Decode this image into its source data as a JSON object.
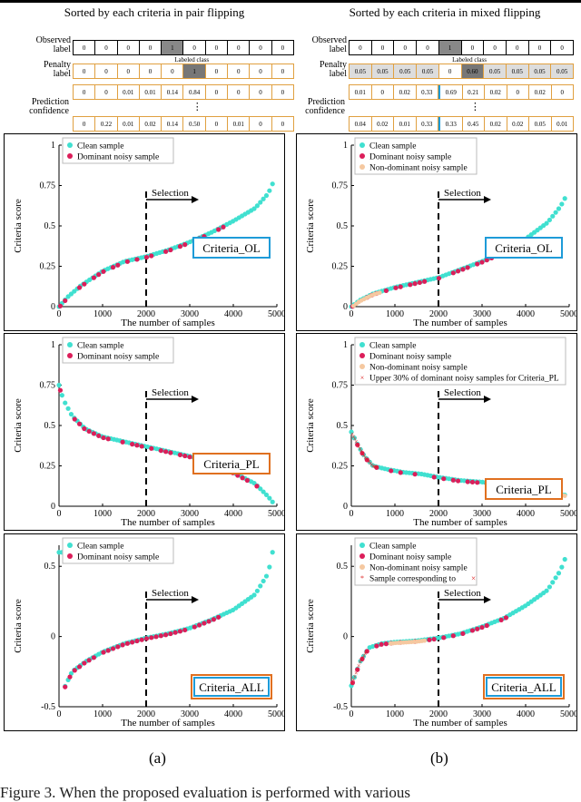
{
  "header_strips": [
    {
      "title": "Sorted by each criteria in pair flipping",
      "observed_label": "Observed label",
      "penalty_label": "Penalty label",
      "prediction_confidence": "Prediction confidence",
      "labeled_class": "Labeled class",
      "observed": [
        "0",
        "0",
        "0",
        "0",
        "1",
        "0",
        "0",
        "0",
        "0",
        "0"
      ],
      "penalty": [
        "0",
        "0",
        "0",
        "0",
        "0",
        "1",
        "0",
        "0",
        "0",
        "0"
      ],
      "conf1": [
        "0",
        "0",
        "0.01",
        "0.01",
        "0.14",
        "0.84",
        "0",
        "0",
        "0",
        "0"
      ],
      "conf2": [
        "0",
        "0.22",
        "0.01",
        "0.02",
        "0.14",
        "0.50",
        "0",
        "0.01",
        "0",
        "0"
      ],
      "highlight_observed": 4,
      "highlight_penalty": 5
    },
    {
      "title": "Sorted by each criteria in mixed flipping",
      "observed_label": "Observed label",
      "penalty_label": "Penalty label",
      "prediction_confidence": "Prediction confidence",
      "labeled_class": "Labeled class",
      "observed": [
        "0",
        "0",
        "0",
        "0",
        "1",
        "0",
        "0",
        "0",
        "0",
        "0"
      ],
      "penalty": [
        "0.05",
        "0.05",
        "0.05",
        "0.05",
        "0",
        "0.60",
        "0.05",
        "0.05",
        "0.05",
        "0.05"
      ],
      "conf1": [
        "0.01",
        "0",
        "0.02",
        "0.33",
        "0.69",
        "0.21",
        "0.02",
        "0",
        "0.02",
        "0"
      ],
      "conf2": [
        "0.04",
        "0.02",
        "0.01",
        "0.33",
        "0.33",
        "0.45",
        "0.02",
        "0.02",
        "0.05",
        "0.01"
      ],
      "highlight_observed": 4,
      "highlight_penalty": 5
    }
  ],
  "colors": {
    "clean": "#40e0d0",
    "dominant": "#dc1e5a",
    "nondominant": "#f5c8a0",
    "upper": "#dc1e1e",
    "box_blue": "#1e9bd8",
    "box_orange": "#e07020",
    "orange_border": "#e0a040"
  },
  "chart_data": [
    {
      "id": "a1",
      "type": "scatter",
      "criteria": "Criteria_OL",
      "box": "blue",
      "xlabel": "The number of samples",
      "ylabel": "Criteria score",
      "ylim": [
        0,
        1
      ],
      "yticks": [
        "0",
        "0.25",
        "0.5",
        "0.75",
        "1"
      ],
      "xticks": [
        "0",
        "1000",
        "2000",
        "3000",
        "4000",
        "5000"
      ],
      "selection": "Selection",
      "legend": [
        "Clean sample",
        "Dominant noisy sample"
      ],
      "curve": [
        [
          0,
          0
        ],
        [
          200,
          0.06
        ],
        [
          500,
          0.13
        ],
        [
          1000,
          0.22
        ],
        [
          1500,
          0.28
        ],
        [
          2000,
          0.31
        ],
        [
          2500,
          0.35
        ],
        [
          3000,
          0.4
        ],
        [
          3500,
          0.46
        ],
        [
          4000,
          0.53
        ],
        [
          4500,
          0.61
        ],
        [
          4800,
          0.7
        ],
        [
          4950,
          0.79
        ]
      ],
      "noisy_upto": 3900
    },
    {
      "id": "b1",
      "type": "scatter",
      "criteria": "Criteria_OL",
      "box": "blue",
      "xlabel": "The number of samples",
      "ylabel": "Criteria score",
      "ylim": [
        0,
        1
      ],
      "yticks": [
        "0",
        "0.25",
        "0.5",
        "0.75",
        "1"
      ],
      "xticks": [
        "0",
        "1000",
        "2000",
        "3000",
        "4000",
        "5000"
      ],
      "selection": "Selection",
      "legend": [
        "Clean sample",
        "Dominant noisy sample",
        "Non-dominant noisy sample"
      ],
      "curve": [
        [
          0,
          0
        ],
        [
          200,
          0.04
        ],
        [
          500,
          0.08
        ],
        [
          1000,
          0.12
        ],
        [
          1500,
          0.15
        ],
        [
          2000,
          0.18
        ],
        [
          2500,
          0.23
        ],
        [
          3000,
          0.28
        ],
        [
          3500,
          0.34
        ],
        [
          4000,
          0.42
        ],
        [
          4500,
          0.52
        ],
        [
          4800,
          0.62
        ],
        [
          4900,
          0.67
        ]
      ],
      "noisy_upto": 3700
    },
    {
      "id": "a2",
      "type": "scatter",
      "criteria": "Criteria_PL",
      "box": "orange",
      "xlabel": "The number of samples",
      "ylabel": "Criteria score",
      "ylim": [
        0,
        1
      ],
      "yticks": [
        "0",
        "0.25",
        "0.5",
        "0.75",
        "1"
      ],
      "xticks": [
        "0",
        "1000",
        "2000",
        "3000",
        "4000",
        "5000"
      ],
      "selection": "Selection",
      "legend": [
        "Clean sample",
        "Dominant noisy sample"
      ],
      "curve": [
        [
          0,
          0.75
        ],
        [
          100,
          0.66
        ],
        [
          300,
          0.56
        ],
        [
          600,
          0.48
        ],
        [
          1000,
          0.43
        ],
        [
          1500,
          0.4
        ],
        [
          2000,
          0.37
        ],
        [
          2500,
          0.34
        ],
        [
          3000,
          0.31
        ],
        [
          3500,
          0.27
        ],
        [
          4000,
          0.21
        ],
        [
          4500,
          0.14
        ],
        [
          4800,
          0.06
        ],
        [
          4950,
          0.01
        ]
      ],
      "noisy_upto": 4900
    },
    {
      "id": "b2",
      "type": "scatter",
      "criteria": "Criteria_PL",
      "box": "orange",
      "xlabel": "The number of samples",
      "ylabel": "Criteria score",
      "ylim": [
        0,
        1
      ],
      "yticks": [
        "0",
        "0.25",
        "0.5",
        "0.75",
        "1"
      ],
      "xticks": [
        "0",
        "1000",
        "2000",
        "3000",
        "4000",
        "5000"
      ],
      "selection": "Selection",
      "legend": [
        "Clean sample",
        "Dominant noisy sample",
        "Non-dominant noisy sample",
        "Upper 30% of dominant noisy samples for Criteria_PL"
      ],
      "curve": [
        [
          0,
          0.46
        ],
        [
          150,
          0.38
        ],
        [
          300,
          0.31
        ],
        [
          500,
          0.25
        ],
        [
          800,
          0.23
        ],
        [
          1200,
          0.21
        ],
        [
          1600,
          0.2
        ],
        [
          2000,
          0.18
        ],
        [
          2500,
          0.16
        ],
        [
          3000,
          0.15
        ],
        [
          3500,
          0.13
        ],
        [
          4000,
          0.11
        ],
        [
          4500,
          0.09
        ],
        [
          4900,
          0.07
        ]
      ],
      "noisy_upto": 4300
    },
    {
      "id": "a3",
      "type": "scatter",
      "criteria": "Criteria_ALL",
      "box": "both",
      "xlabel": "The number of samples",
      "ylabel": "Criteria score",
      "ylim": [
        -0.5,
        0.65
      ],
      "yticks": [
        "-0.5",
        "0",
        "0.5"
      ],
      "xticks": [
        "0",
        "1000",
        "2000",
        "3000",
        "4000",
        "5000"
      ],
      "selection": "Selection",
      "legend": [
        "Clean sample",
        "Dominant noisy sample"
      ],
      "curve": [
        [
          100,
          -0.38
        ],
        [
          300,
          -0.25
        ],
        [
          600,
          -0.18
        ],
        [
          1000,
          -0.11
        ],
        [
          1500,
          -0.05
        ],
        [
          2000,
          -0.01
        ],
        [
          2500,
          0.02
        ],
        [
          3000,
          0.06
        ],
        [
          3500,
          0.12
        ],
        [
          4000,
          0.19
        ],
        [
          4500,
          0.3
        ],
        [
          4800,
          0.45
        ],
        [
          4900,
          0.6
        ]
      ],
      "noisy_upto": 3700
    },
    {
      "id": "b3",
      "type": "scatter",
      "criteria": "Criteria_ALL",
      "box": "both",
      "xlabel": "The number of samples",
      "ylabel": "Criteria score",
      "ylim": [
        -0.5,
        0.65
      ],
      "yticks": [
        "-0.5",
        "0",
        "0.5"
      ],
      "xticks": [
        "0",
        "1000",
        "2000",
        "3000",
        "4000",
        "5000"
      ],
      "selection": "Selection",
      "legend": [
        "Clean sample",
        "Dominant noisy sample",
        "Non-dominant noisy sample",
        "Sample corresponding to"
      ],
      "curve": [
        [
          0,
          -0.35
        ],
        [
          200,
          -0.18
        ],
        [
          400,
          -0.08
        ],
        [
          700,
          -0.05
        ],
        [
          1000,
          -0.04
        ],
        [
          1500,
          -0.03
        ],
        [
          2000,
          -0.01
        ],
        [
          2500,
          0.02
        ],
        [
          3000,
          0.07
        ],
        [
          3500,
          0.13
        ],
        [
          4000,
          0.22
        ],
        [
          4500,
          0.33
        ],
        [
          4800,
          0.47
        ],
        [
          4900,
          0.55
        ]
      ],
      "noisy_upto": 3600
    }
  ],
  "captions": [
    "(a)",
    "(b)"
  ],
  "bottom_text": "Figure 3. When the proposed evaluation is performed with various"
}
